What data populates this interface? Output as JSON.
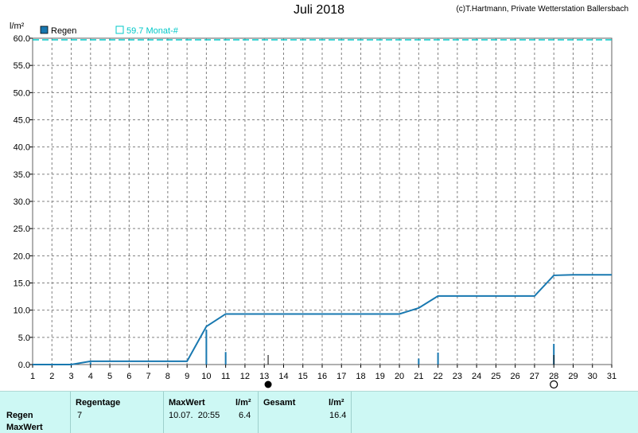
{
  "header": {
    "title": "Juli 2018",
    "credit": "(c)T.Hartmann, Private Wetterstation Ballersbach"
  },
  "chart_data": {
    "type": "line",
    "ylabel": "l/m²",
    "ylim": [
      0,
      60
    ],
    "xlim": [
      1,
      31
    ],
    "y_ticks": [
      "0.0",
      "5.0",
      "10.0",
      "15.0",
      "20.0",
      "25.0",
      "30.0",
      "35.0",
      "40.0",
      "45.0",
      "50.0",
      "55.0",
      "60.0"
    ],
    "x_ticks": [
      "1",
      "2",
      "3",
      "4",
      "5",
      "6",
      "7",
      "8",
      "9",
      "10",
      "11",
      "12",
      "13",
      "14",
      "15",
      "16",
      "17",
      "18",
      "19",
      "20",
      "21",
      "22",
      "23",
      "24",
      "25",
      "26",
      "27",
      "28",
      "29",
      "30",
      "31"
    ],
    "grid": true,
    "legend": [
      {
        "name": "Regen",
        "color": "#1878b0"
      },
      {
        "name": "59.7 Monat-#",
        "color": "#00c8c8"
      }
    ],
    "reference_value": 59.7,
    "cumulative": {
      "name": "Regen",
      "x": [
        1,
        3,
        4,
        9,
        10,
        11,
        20,
        21,
        22,
        27,
        28,
        29,
        31
      ],
      "y": [
        0,
        0,
        0.6,
        0.6,
        7.0,
        9.3,
        9.3,
        10.4,
        12.6,
        12.6,
        16.4,
        16.5,
        16.5
      ]
    },
    "daily": {
      "x": [
        3,
        4,
        10,
        11,
        21,
        22,
        28
      ],
      "y": [
        0.2,
        0.4,
        6.4,
        2.3,
        1.1,
        2.2,
        3.8
      ]
    },
    "markers": [
      {
        "x": 13.2,
        "type": "filled-circle",
        "color": "#000000"
      },
      {
        "x": 28.0,
        "type": "open-circle",
        "color": "#000000"
      }
    ]
  },
  "stats": {
    "headers": {
      "regentage": "Regentage",
      "maxwert": "MaxWert",
      "unit1": "l/m²",
      "gesamt": "Gesamt",
      "unit2": "l/m²"
    },
    "rows": {
      "regen": "Regen",
      "maxwert": "MaxWert"
    },
    "values": {
      "regentage": "7",
      "max_date": "10.07.  20:55",
      "max_value": "6.4",
      "gesamt": "16.4"
    }
  }
}
